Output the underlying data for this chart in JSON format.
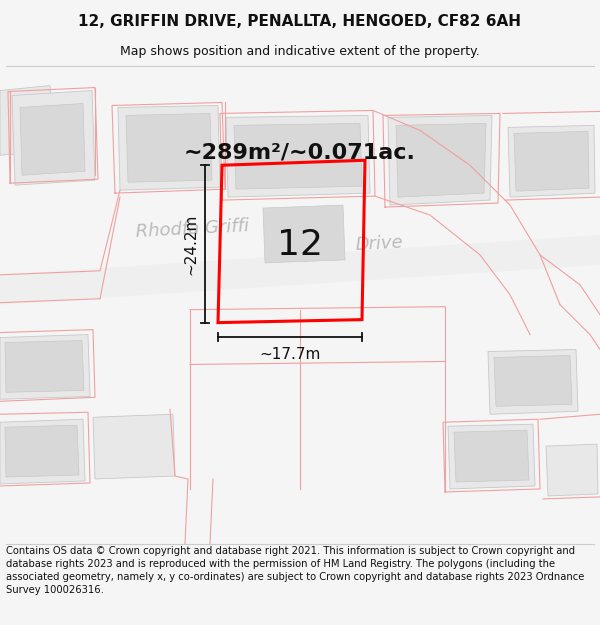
{
  "title": "12, GRIFFIN DRIVE, PENALLTA, HENGOED, CF82 6AH",
  "subtitle": "Map shows position and indicative extent of the property.",
  "footer": "Contains OS data © Crown copyright and database right 2021. This information is subject to Crown copyright and database rights 2023 and is reproduced with the permission of HM Land Registry. The polygons (including the associated geometry, namely x, y co-ordinates) are subject to Crown copyright and database rights 2023 Ordnance Survey 100026316.",
  "street_label1": "Rhodfa Griffi",
  "street_label2": "Drive",
  "area_label": "~289m²/~0.071ac.",
  "number_label": "12",
  "dim_width": "~17.7m",
  "dim_height": "~24.2m",
  "bg_color": "#f5f5f5",
  "map_bg": "#ffffff",
  "building_fill": "#e8e8e8",
  "building_edge": "#c8c8c8",
  "boundary_color": "#f0a0a0",
  "road_fill": "#efefef",
  "highlight_color": "#ff0000",
  "title_fontsize": 11,
  "subtitle_fontsize": 9,
  "footer_fontsize": 7.2,
  "street_fontsize": 13,
  "area_fontsize": 16,
  "number_fontsize": 26,
  "dim_fontsize": 11
}
